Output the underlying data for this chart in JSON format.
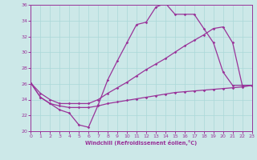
{
  "bg_color": "#cce8e8",
  "grid_color": "#aad8d8",
  "line_color": "#993399",
  "xlabel": "Windchill (Refroidissement éolien,°C)",
  "xlim": [
    0,
    23
  ],
  "ylim": [
    20,
    36
  ],
  "xticks": [
    0,
    1,
    2,
    3,
    4,
    5,
    6,
    7,
    8,
    9,
    10,
    11,
    12,
    13,
    14,
    15,
    16,
    17,
    18,
    19,
    20,
    21,
    22,
    23
  ],
  "yticks": [
    20,
    22,
    24,
    26,
    28,
    30,
    32,
    34,
    36
  ],
  "curve1_x": [
    0,
    1,
    2,
    3,
    4,
    5,
    6,
    7,
    8,
    9,
    10,
    11,
    12,
    13,
    14,
    15,
    16,
    17,
    18,
    19,
    20,
    21,
    22,
    23
  ],
  "curve1_y": [
    26.1,
    24.3,
    23.5,
    22.7,
    22.3,
    20.8,
    20.5,
    23.3,
    26.5,
    28.9,
    31.2,
    33.5,
    33.8,
    35.7,
    36.2,
    34.8,
    34.8,
    34.8,
    33.0,
    31.2,
    27.5,
    25.8,
    25.8,
    25.8
  ],
  "curve2_x": [
    0,
    1,
    2,
    3,
    4,
    5,
    6,
    7,
    8,
    9,
    10,
    11,
    12,
    13,
    14,
    15,
    16,
    17,
    18,
    19,
    20,
    21,
    22,
    23
  ],
  "curve2_y": [
    26.1,
    24.8,
    24.0,
    23.5,
    23.5,
    23.5,
    23.5,
    24.0,
    24.8,
    25.5,
    26.2,
    27.0,
    27.8,
    28.5,
    29.2,
    30.0,
    30.8,
    31.5,
    32.2,
    33.0,
    33.2,
    31.2,
    25.8,
    25.8
  ],
  "curve3_x": [
    0,
    1,
    2,
    3,
    4,
    5,
    6,
    7,
    8,
    9,
    10,
    11,
    12,
    13,
    14,
    15,
    16,
    17,
    18,
    19,
    20,
    21,
    22,
    23
  ],
  "curve3_y": [
    26.1,
    24.3,
    23.5,
    23.2,
    23.0,
    23.0,
    23.0,
    23.2,
    23.5,
    23.7,
    23.9,
    24.1,
    24.3,
    24.5,
    24.7,
    24.9,
    25.0,
    25.1,
    25.2,
    25.3,
    25.4,
    25.5,
    25.6,
    25.8
  ]
}
